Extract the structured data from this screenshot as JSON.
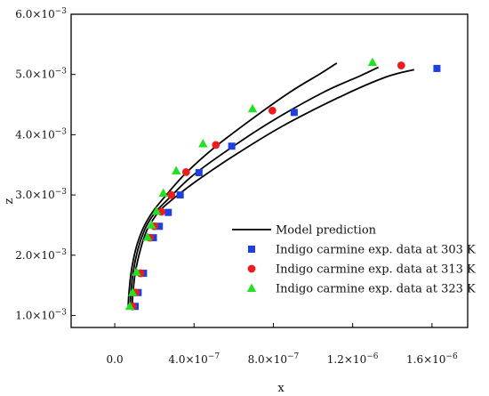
{
  "chart_data": {
    "type": "scatter",
    "xlabel": "x",
    "ylabel": "z",
    "xlim": [
      -2.2e-07,
      1.78e-06
    ],
    "ylim": [
      0.0008,
      0.006
    ],
    "grid": false,
    "legend_placement": "bottom-right",
    "x_ticks": [
      {
        "value": 0,
        "label": "0.0",
        "exp": ""
      },
      {
        "value": 4e-07,
        "label": "4.0×10",
        "exp": "−7"
      },
      {
        "value": 8e-07,
        "label": "8.0×10",
        "exp": "−7"
      },
      {
        "value": 1.2e-06,
        "label": "1.2×10",
        "exp": "−6"
      },
      {
        "value": 1.6e-06,
        "label": "1.6×10",
        "exp": "−6"
      }
    ],
    "y_ticks": [
      {
        "value": 0.001,
        "label": "1.0×10",
        "exp": "−3"
      },
      {
        "value": 0.002,
        "label": "2.0×10",
        "exp": "−3"
      },
      {
        "value": 0.003,
        "label": "3.0×10",
        "exp": "−3"
      },
      {
        "value": 0.004,
        "label": "4.0×10",
        "exp": "−3"
      },
      {
        "value": 0.005,
        "label": "5.0×10",
        "exp": "−3"
      },
      {
        "value": 0.006,
        "label": "6.0×10",
        "exp": "−3"
      }
    ],
    "model_curves": [
      {
        "name": "Model prediction",
        "color": "#000000",
        "points": [
          [
            8.8e-08,
            0.00112
          ],
          [
            9e-08,
            0.0013
          ],
          [
            1.03e-07,
            0.0017
          ],
          [
            1.3e-07,
            0.0021
          ],
          [
            1.6e-07,
            0.0024
          ],
          [
            1.95e-07,
            0.0026
          ],
          [
            2.3e-07,
            0.00275
          ],
          [
            3e-07,
            0.00295
          ],
          [
            4.2e-07,
            0.00325
          ],
          [
            6e-07,
            0.00365
          ],
          [
            8.5e-07,
            0.00415
          ],
          [
            1.15e-06,
            0.00465
          ],
          [
            1.37e-06,
            0.00496
          ],
          [
            1.51e-06,
            0.00508
          ]
        ]
      },
      {
        "name": "Model prediction",
        "color": "#000000",
        "points": [
          [
            7.8e-08,
            0.00112
          ],
          [
            8e-08,
            0.0013
          ],
          [
            9.2e-08,
            0.0017
          ],
          [
            1.17e-07,
            0.0021
          ],
          [
            1.48e-07,
            0.0024
          ],
          [
            1.8e-07,
            0.0026
          ],
          [
            2.15e-07,
            0.00275
          ],
          [
            2.75e-07,
            0.00295
          ],
          [
            3.85e-07,
            0.0033
          ],
          [
            5.5e-07,
            0.0037
          ],
          [
            7.8e-07,
            0.0042
          ],
          [
            1.05e-06,
            0.0047
          ],
          [
            1.24e-06,
            0.00498
          ],
          [
            1.33e-06,
            0.00512
          ]
        ]
      },
      {
        "name": "Model prediction",
        "color": "#000000",
        "points": [
          [
            6.8e-08,
            0.00112
          ],
          [
            7e-08,
            0.0013
          ],
          [
            8.2e-08,
            0.0017
          ],
          [
            1.06e-07,
            0.0021
          ],
          [
            1.37e-07,
            0.0024
          ],
          [
            1.68e-07,
            0.0026
          ],
          [
            2e-07,
            0.00276
          ],
          [
            2.55e-07,
            0.00298
          ],
          [
            3.55e-07,
            0.00335
          ],
          [
            5e-07,
            0.00378
          ],
          [
            7e-07,
            0.00428
          ],
          [
            8.9e-07,
            0.00472
          ],
          [
            1.04e-06,
            0.00502
          ],
          [
            1.12e-06,
            0.00519
          ]
        ]
      }
    ],
    "series": [
      {
        "name": "Indigo carmine exp. data at 303 K",
        "color": "#1f3fe0",
        "marker": "square",
        "points": [
          [
            1.03e-07,
            0.00115
          ],
          [
            1.18e-07,
            0.00138
          ],
          [
            1.45e-07,
            0.0017
          ],
          [
            1.95e-07,
            0.00229
          ],
          [
            2.25e-07,
            0.00248
          ],
          [
            2.7e-07,
            0.00271
          ],
          [
            3.3e-07,
            0.003
          ],
          [
            4.25e-07,
            0.00337
          ],
          [
            5.9e-07,
            0.00381
          ],
          [
            9.05e-07,
            0.00437
          ],
          [
            1.625e-06,
            0.0051
          ]
        ]
      },
      {
        "name": "Indigo carmine exp. data at 313 K",
        "color": "#ee1c1c",
        "marker": "circle",
        "points": [
          [
            9e-08,
            0.00115
          ],
          [
            1.05e-07,
            0.00138
          ],
          [
            1.3e-07,
            0.0017
          ],
          [
            1.77e-07,
            0.00229
          ],
          [
            2e-07,
            0.00248
          ],
          [
            2.35e-07,
            0.00272
          ],
          [
            2.85e-07,
            0.003
          ],
          [
            3.6e-07,
            0.00338
          ],
          [
            5.1e-07,
            0.00383
          ],
          [
            7.95e-07,
            0.0044
          ],
          [
            1.445e-06,
            0.00515
          ]
        ]
      },
      {
        "name": "Indigo carmine exp. data at 323 K",
        "color": "#22e022",
        "marker": "triangle",
        "points": [
          [
            7.6e-08,
            0.00115
          ],
          [
            9e-08,
            0.00138
          ],
          [
            1.1e-07,
            0.00172
          ],
          [
            1.65e-07,
            0.0023
          ],
          [
            1.85e-07,
            0.0025
          ],
          [
            2.1e-07,
            0.00273
          ],
          [
            2.45e-07,
            0.00303
          ],
          [
            3.1e-07,
            0.0034
          ],
          [
            4.45e-07,
            0.00385
          ],
          [
            6.95e-07,
            0.00443
          ],
          [
            1.3e-06,
            0.0052
          ]
        ]
      }
    ],
    "legend": [
      {
        "label": "Model prediction",
        "kind": "line",
        "color": "#000000"
      },
      {
        "label": "Indigo carmine exp. data at 303 K",
        "kind": "square",
        "color": "#1f3fe0"
      },
      {
        "label": "Indigo carmine exp. data at 313 K",
        "kind": "circle",
        "color": "#ee1c1c"
      },
      {
        "label": "Indigo carmine exp. data at 323 K",
        "kind": "triangle",
        "color": "#22e022"
      }
    ]
  }
}
